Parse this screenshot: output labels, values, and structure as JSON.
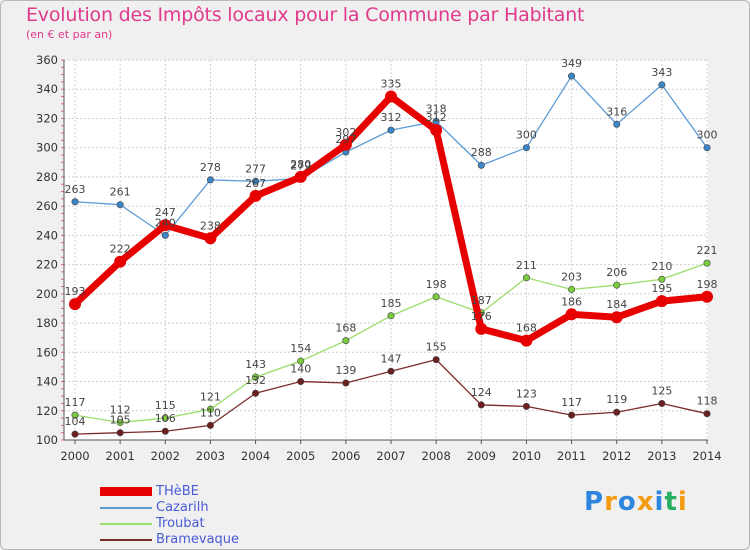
{
  "header": {
    "title": "Evolution des Impôts locaux pour la Commune par Habitant",
    "subtitle": "(en € et par an)"
  },
  "brand": {
    "text": "Proxiti",
    "letters": [
      "P",
      "r",
      "o",
      "x",
      "i",
      "t",
      "i"
    ],
    "colors": [
      "#2e86de",
      "#f39c12",
      "#2e86de",
      "#f39c12",
      "#2e86de",
      "#27ae60",
      "#f39c12"
    ]
  },
  "chart_data": {
    "type": "line",
    "title": "Evolution des Impôts locaux pour la Commune par Habitant",
    "subtitle": "(en € et par an)",
    "xlabel": "",
    "ylabel": "",
    "ylim": [
      100,
      360
    ],
    "yticks": [
      100,
      120,
      140,
      160,
      180,
      200,
      220,
      240,
      260,
      280,
      300,
      320,
      340,
      360
    ],
    "grid": true,
    "legend_position": "bottom-left",
    "categories": [
      "2000",
      "2001",
      "2002",
      "2003",
      "2004",
      "2005",
      "2006",
      "2007",
      "2008",
      "2009",
      "2010",
      "2011",
      "2012",
      "2013",
      "2014"
    ],
    "series": [
      {
        "name": "Cazarilh",
        "color": "#5b9bd5",
        "marker": "#3a86c8",
        "values": [
          263,
          261,
          240,
          278,
          277,
          279,
          297,
          312,
          318,
          288,
          300,
          349,
          316,
          343,
          300
        ],
        "labels": [
          "263",
          "261",
          "240",
          "278",
          "277",
          "279",
          "297",
          "312",
          "318",
          "288",
          "300",
          "349",
          "316",
          "343",
          "300"
        ]
      },
      {
        "name": "Troubat",
        "color": "#9bdd6b",
        "marker": "#7acb3d",
        "values": [
          117,
          112,
          115,
          121,
          143,
          154,
          168,
          185,
          198,
          187,
          211,
          203,
          206,
          210,
          221
        ],
        "labels": [
          "117",
          "112",
          "115",
          "121",
          "143",
          "154",
          "168",
          "185",
          "198",
          "187",
          "211",
          "203",
          "206",
          "210",
          "221"
        ]
      },
      {
        "name": "Bramevaque",
        "color": "#7b2a2a",
        "marker": "#6b1f1f",
        "values": [
          104,
          105,
          106,
          110,
          132,
          140,
          139,
          147,
          155,
          124,
          123,
          117,
          119,
          125,
          118
        ],
        "labels": [
          "104",
          "105",
          "106",
          "110",
          "132",
          "140",
          "139",
          "147",
          "155",
          "124",
          "123",
          "117",
          "119",
          "125",
          "118"
        ]
      },
      {
        "name": "THèBE",
        "color": "#e60000",
        "marker": "#e60000",
        "bold": true,
        "values": [
          193,
          222,
          247,
          238,
          267,
          280,
          302,
          335,
          312,
          176,
          168,
          186,
          184,
          195,
          198
        ],
        "labels": [
          "193",
          "222",
          "247",
          "238",
          "267",
          "280",
          "302",
          "335",
          "312",
          "176",
          "168",
          "186",
          "184",
          "195",
          "198"
        ]
      }
    ]
  },
  "legend": [
    {
      "name": "THèBE",
      "color": "#e60000",
      "thick": true
    },
    {
      "name": "Cazarilh",
      "color": "#5b9bd5",
      "thick": false
    },
    {
      "name": "Troubat",
      "color": "#9bdd6b",
      "thick": false
    },
    {
      "name": "Bramevaque",
      "color": "#7b2a2a",
      "thick": false
    }
  ]
}
